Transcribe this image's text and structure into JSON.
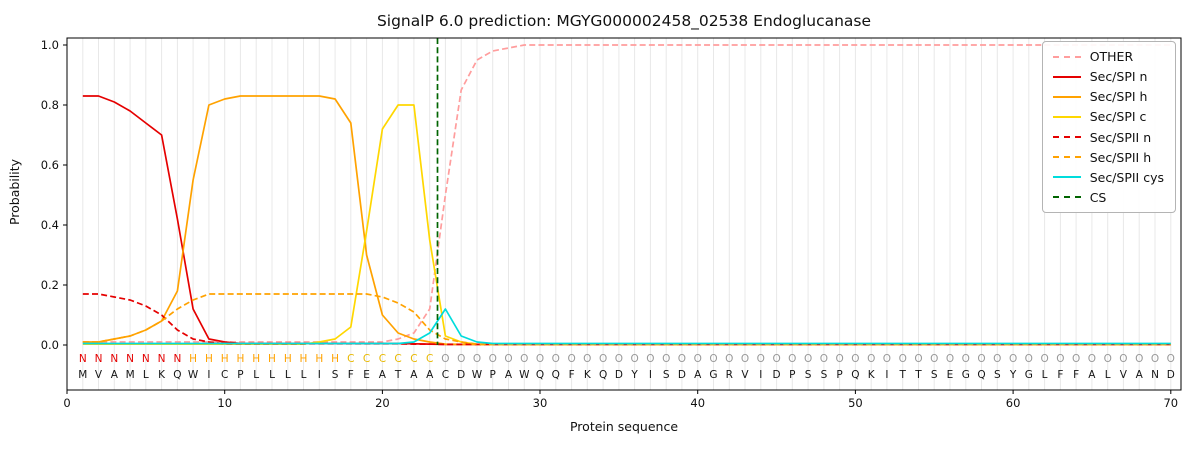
{
  "chart_data": {
    "type": "line",
    "title": "SignalP 6.0 prediction: MGYG000002458_02538 Endoglucanase",
    "xlabel": "Protein sequence",
    "ylabel": "Probability",
    "xlim": [
      0,
      70.65
    ],
    "ylim": [
      0,
      1.05
    ],
    "grid": "vertical-gridline-per-residue",
    "xticks": {
      "values": [
        0,
        10,
        20,
        30,
        40,
        50,
        60,
        70
      ],
      "labels": [
        "0",
        "10",
        "20",
        "30",
        "40",
        "50",
        "60",
        "70"
      ]
    },
    "yticks": {
      "values": [
        0,
        0.2,
        0.4,
        0.6,
        0.8,
        1.0
      ],
      "labels": [
        "0.0",
        "0.2",
        "0.4",
        "0.6",
        "0.8",
        "1.0"
      ]
    },
    "colors": {
      "background": "#ffffff",
      "grid": "#e8e8e8",
      "spine": "#000000",
      "tick_text": "#111111",
      "residue_text": "#141414"
    },
    "sequence": "MVAMLKQWICPLLLLISFEATAACDWPAWQQFKQDYISDAGRVIDPSSPQKITTSEGQSYGLFFALVAND",
    "regions": "NNNNNNNHHHHHHHHHHCCCCCCOOOOOOOOOOOOOOOOOOOOOOOOOOOOOOOOOOOOOOOOOOOOOOO",
    "region_colors": {
      "N": "#e50000",
      "H": "#ffa200",
      "C": "#e8b800",
      "O": "#999999"
    },
    "cs": {
      "label": "CS",
      "position": 23.5,
      "color": "#006400",
      "dash": true
    },
    "series": [
      {
        "name": "OTHER",
        "color": "#ff9d9d",
        "dash": true,
        "values": [
          0.01,
          0.01,
          0.01,
          0.01,
          0.01,
          0.01,
          0.01,
          0.01,
          0.01,
          0.01,
          0.01,
          0.01,
          0.01,
          0.01,
          0.01,
          0.01,
          0.01,
          0.01,
          0.01,
          0.01,
          0.02,
          0.04,
          0.12,
          0.5,
          0.85,
          0.95,
          0.98,
          0.99,
          1,
          1,
          1,
          1,
          1,
          1,
          1,
          1,
          1,
          1,
          1,
          1,
          1,
          1,
          1,
          1,
          1,
          1,
          1,
          1,
          1,
          1,
          1,
          1,
          1,
          1,
          1,
          1,
          1,
          1,
          1,
          1,
          1,
          1,
          1,
          1,
          1,
          1,
          1,
          1,
          1,
          1
        ]
      },
      {
        "name": "Sec/SPI n",
        "color": "#e50000",
        "dash": false,
        "values": [
          0.83,
          0.83,
          0.81,
          0.78,
          0.74,
          0.7,
          0.42,
          0.12,
          0.02,
          0.01,
          0.005,
          0.005,
          0.005,
          0.005,
          0.005,
          0.005,
          0.005,
          0.005,
          0.005,
          0.005,
          0.005,
          0.004,
          0.003,
          0.002,
          0.002,
          0.002,
          0.002,
          0.002,
          0.002,
          0.002,
          0.002,
          0.002,
          0.002,
          0.002,
          0.002,
          0.002,
          0.002,
          0.002,
          0.002,
          0.002,
          0.002,
          0.002,
          0.002,
          0.002,
          0.002,
          0.002,
          0.002,
          0.002,
          0.002,
          0.002,
          0.002,
          0.002,
          0.002,
          0.002,
          0.002,
          0.002,
          0.002,
          0.002,
          0.002,
          0.002,
          0.002,
          0.002,
          0.002,
          0.002,
          0.002,
          0.002,
          0.002,
          0.002,
          0.002,
          0.002
        ]
      },
      {
        "name": "Sec/SPI h",
        "color": "#ffa200",
        "dash": false,
        "values": [
          0.01,
          0.01,
          0.02,
          0.03,
          0.05,
          0.08,
          0.18,
          0.55,
          0.8,
          0.82,
          0.83,
          0.83,
          0.83,
          0.83,
          0.83,
          0.83,
          0.82,
          0.74,
          0.3,
          0.1,
          0.04,
          0.02,
          0.01,
          0.003,
          0.002,
          0.002,
          0.002,
          0.002,
          0.002,
          0.002,
          0.002,
          0.002,
          0.002,
          0.002,
          0.002,
          0.002,
          0.002,
          0.002,
          0.002,
          0.002,
          0.002,
          0.002,
          0.002,
          0.002,
          0.002,
          0.002,
          0.002,
          0.002,
          0.002,
          0.002,
          0.002,
          0.002,
          0.002,
          0.002,
          0.002,
          0.002,
          0.002,
          0.002,
          0.002,
          0.002,
          0.002,
          0.002,
          0.002,
          0.002,
          0.002,
          0.002,
          0.002,
          0.002,
          0.002,
          0.002
        ]
      },
      {
        "name": "Sec/SPI c",
        "color": "#ffd700",
        "dash": false,
        "values": [
          0.003,
          0.003,
          0.003,
          0.003,
          0.003,
          0.003,
          0.003,
          0.003,
          0.003,
          0.003,
          0.003,
          0.003,
          0.003,
          0.003,
          0.003,
          0.01,
          0.02,
          0.06,
          0.38,
          0.72,
          0.8,
          0.8,
          0.35,
          0.03,
          0.01,
          0.002,
          0.002,
          0.002,
          0.002,
          0.002,
          0.002,
          0.002,
          0.002,
          0.002,
          0.002,
          0.002,
          0.002,
          0.002,
          0.002,
          0.002,
          0.002,
          0.002,
          0.002,
          0.002,
          0.002,
          0.002,
          0.002,
          0.002,
          0.002,
          0.002,
          0.002,
          0.002,
          0.002,
          0.002,
          0.002,
          0.002,
          0.002,
          0.002,
          0.002,
          0.002,
          0.002,
          0.002,
          0.002,
          0.002,
          0.002,
          0.002,
          0.002,
          0.002,
          0.002,
          0.002
        ]
      },
      {
        "name": "Sec/SPII n",
        "color": "#e50000",
        "dash": true,
        "values": [
          0.17,
          0.17,
          0.16,
          0.15,
          0.13,
          0.1,
          0.05,
          0.02,
          0.01,
          0.004,
          0.004,
          0.004,
          0.004,
          0.004,
          0.004,
          0.004,
          0.004,
          0.004,
          0.004,
          0.004,
          0.004,
          0.003,
          0.003,
          0.002,
          0.002,
          0.002,
          0.002,
          0.002,
          0.002,
          0.002,
          0.002,
          0.002,
          0.002,
          0.002,
          0.002,
          0.002,
          0.002,
          0.002,
          0.002,
          0.002,
          0.002,
          0.002,
          0.002,
          0.002,
          0.002,
          0.002,
          0.002,
          0.002,
          0.002,
          0.002,
          0.002,
          0.002,
          0.002,
          0.002,
          0.002,
          0.002,
          0.002,
          0.002,
          0.002,
          0.002,
          0.002,
          0.002,
          0.002,
          0.002,
          0.002,
          0.002,
          0.002,
          0.002,
          0.002,
          0.002
        ]
      },
      {
        "name": "Sec/SPII h",
        "color": "#ffa200",
        "dash": true,
        "values": [
          0.01,
          0.01,
          0.02,
          0.03,
          0.05,
          0.08,
          0.12,
          0.15,
          0.17,
          0.17,
          0.17,
          0.17,
          0.17,
          0.17,
          0.17,
          0.17,
          0.17,
          0.17,
          0.17,
          0.16,
          0.14,
          0.11,
          0.05,
          0.02,
          0.01,
          0.003,
          0.002,
          0.002,
          0.002,
          0.002,
          0.002,
          0.002,
          0.002,
          0.002,
          0.002,
          0.002,
          0.002,
          0.002,
          0.002,
          0.002,
          0.002,
          0.002,
          0.002,
          0.002,
          0.002,
          0.002,
          0.002,
          0.002,
          0.002,
          0.002,
          0.002,
          0.002,
          0.002,
          0.002,
          0.002,
          0.002,
          0.002,
          0.002,
          0.002,
          0.002,
          0.002,
          0.002,
          0.002,
          0.002,
          0.002,
          0.002,
          0.002,
          0.002,
          0.002,
          0.002
        ]
      },
      {
        "name": "Sec/SPII cys",
        "color": "#00dcdc",
        "dash": false,
        "values": [
          0.005,
          0.005,
          0.005,
          0.005,
          0.005,
          0.005,
          0.005,
          0.005,
          0.005,
          0.005,
          0.005,
          0.005,
          0.005,
          0.005,
          0.005,
          0.005,
          0.005,
          0.005,
          0.005,
          0.005,
          0.005,
          0.01,
          0.04,
          0.12,
          0.03,
          0.01,
          0.005,
          0.005,
          0.005,
          0.005,
          0.005,
          0.005,
          0.005,
          0.005,
          0.005,
          0.005,
          0.005,
          0.005,
          0.005,
          0.005,
          0.005,
          0.005,
          0.005,
          0.005,
          0.005,
          0.005,
          0.005,
          0.005,
          0.005,
          0.005,
          0.005,
          0.005,
          0.005,
          0.005,
          0.005,
          0.005,
          0.005,
          0.005,
          0.005,
          0.005,
          0.005,
          0.005,
          0.005,
          0.005,
          0.005,
          0.005,
          0.005,
          0.005,
          0.005,
          0.005
        ]
      }
    ],
    "legend": {
      "position": "upper right",
      "entries": [
        {
          "label": "OTHER",
          "color": "#ff9d9d",
          "dash": true
        },
        {
          "label": "Sec/SPI n",
          "color": "#e50000",
          "dash": false
        },
        {
          "label": "Sec/SPI h",
          "color": "#ffa200",
          "dash": false
        },
        {
          "label": "Sec/SPI c",
          "color": "#ffd700",
          "dash": false
        },
        {
          "label": "Sec/SPII n",
          "color": "#e50000",
          "dash": true
        },
        {
          "label": "Sec/SPII h",
          "color": "#ffa200",
          "dash": true
        },
        {
          "label": "Sec/SPII cys",
          "color": "#00dcdc",
          "dash": false
        },
        {
          "label": "CS",
          "color": "#006400",
          "dash": true
        }
      ]
    }
  }
}
